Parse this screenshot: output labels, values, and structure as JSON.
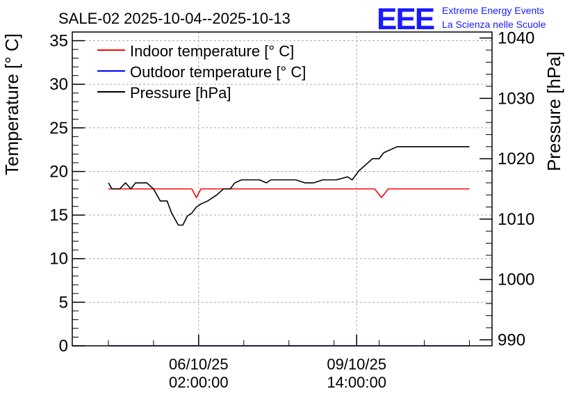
{
  "chart_data": {
    "type": "line",
    "title": "SALE-02 2025-10-04--2025-10-13",
    "logo": {
      "text": "EEE",
      "line1": "Extreme Energy Events",
      "line2": "La Scienza nelle Scuole",
      "color": "#1a1aff"
    },
    "ylabel_left": "Temperature [° C]",
    "ylabel_right": "Pressure [hPa]",
    "y_left_range": [
      0,
      36
    ],
    "y_right_range": [
      989,
      1041
    ],
    "y_left_ticks": [
      0,
      5,
      10,
      15,
      20,
      25,
      30,
      35
    ],
    "y_right_ticks": [
      990,
      1000,
      1010,
      1020,
      1030,
      1040
    ],
    "x_range": [
      -0.8,
      8.5
    ],
    "x_ticks": [
      {
        "x": 2.0,
        "date": "06/10/25",
        "time": "02:00:00"
      },
      {
        "x": 5.5,
        "date": "09/10/25",
        "time": "14:00:00"
      }
    ],
    "grid": true,
    "legend_position": "top-left",
    "series": [
      {
        "name": "Indoor temperature [° C]",
        "color": "#ff0000",
        "axis": "left",
        "x": [
          0.0,
          1.85,
          1.95,
          2.05,
          5.9,
          6.05,
          6.2,
          8.0
        ],
        "y": [
          18.0,
          18.0,
          17.0,
          18.0,
          18.0,
          17.0,
          18.0,
          18.0
        ]
      },
      {
        "name": "Outdoor temperature [° C]",
        "color": "#0000ff",
        "axis": "left",
        "x": [
          0.0,
          8.0
        ],
        "y": [
          0.0,
          0.0
        ]
      },
      {
        "name": "Pressure [hPa]",
        "color": "#000000",
        "axis": "right",
        "x": [
          0.0,
          0.08,
          0.25,
          0.38,
          0.5,
          0.6,
          0.72,
          0.85,
          1.0,
          1.15,
          1.3,
          1.4,
          1.55,
          1.65,
          1.75,
          1.85,
          1.95,
          2.05,
          2.2,
          2.4,
          2.55,
          2.7,
          2.8,
          2.95,
          3.1,
          3.35,
          3.5,
          3.6,
          3.75,
          3.9,
          4.15,
          4.35,
          4.55,
          4.75,
          4.9,
          5.05,
          5.3,
          5.4,
          5.55,
          5.7,
          5.85,
          6.0,
          6.1,
          6.4,
          6.6,
          6.75,
          8.0
        ],
        "y": [
          1016.0,
          1015.0,
          1015.0,
          1016.0,
          1015.0,
          1016.0,
          1016.0,
          1016.0,
          1015.0,
          1013.0,
          1013.0,
          1011.0,
          1009.0,
          1009.0,
          1010.5,
          1011.0,
          1012.0,
          1012.5,
          1013.0,
          1014.0,
          1015.0,
          1015.0,
          1016.0,
          1016.5,
          1016.5,
          1016.5,
          1016.0,
          1016.5,
          1016.5,
          1016.5,
          1016.5,
          1016.0,
          1016.0,
          1016.5,
          1016.5,
          1016.5,
          1017.0,
          1016.5,
          1018.0,
          1019.0,
          1020.0,
          1020.0,
          1021.0,
          1022.0,
          1022.0,
          1022.0,
          1022.0
        ]
      }
    ]
  }
}
